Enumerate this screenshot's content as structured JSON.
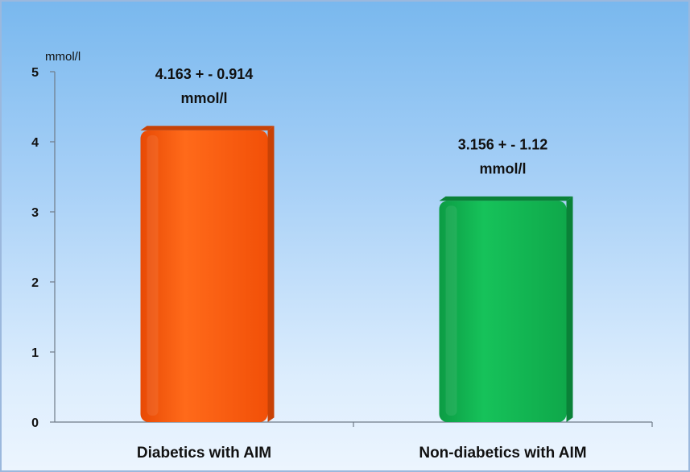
{
  "chart_data": {
    "type": "bar",
    "categories": [
      "Diabetics with AIM",
      "Non-diabetics with AIM"
    ],
    "values": [
      4.163,
      3.156
    ],
    "errors": [
      0.914,
      1.12
    ],
    "data_labels": [
      [
        "4.163 + - 0.914",
        "mmol/l"
      ],
      [
        "3.156 + - 1.12",
        "mmol/l"
      ]
    ],
    "bar_colors": [
      "#ff5a0a",
      "#10b14e"
    ],
    "bar_side_colors": [
      "#c84206",
      "#0a8238"
    ],
    "y_unit": "mmol/l",
    "yticks": [
      "0",
      "1",
      "2",
      "3",
      "4",
      "5"
    ],
    "ylim": [
      0,
      5
    ],
    "grid": false,
    "title": "",
    "xlabel": "",
    "ylabel": ""
  }
}
